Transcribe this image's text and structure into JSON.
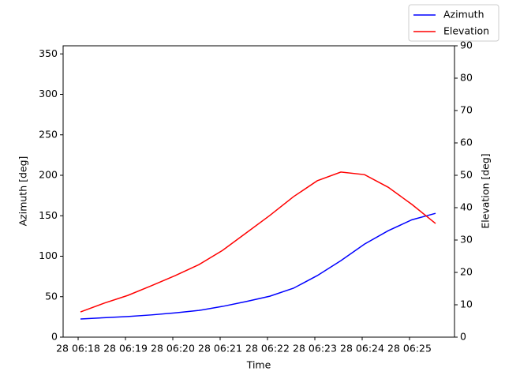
{
  "chart_data": {
    "type": "line",
    "xlabel": "Time",
    "ylabel": "Azimuth [deg]",
    "y2label": "Elevation [deg]",
    "x": [
      18.05,
      18.55,
      19.05,
      19.55,
      20.05,
      20.55,
      21.05,
      21.55,
      22.05,
      22.55,
      23.05,
      23.55,
      24.05,
      24.55,
      25.05,
      25.55
    ],
    "xlim": [
      17.683,
      25.95
    ],
    "xticks": [
      {
        "value": 18,
        "label": "28 06:18"
      },
      {
        "value": 19,
        "label": "28 06:19"
      },
      {
        "value": 20,
        "label": "28 06:20"
      },
      {
        "value": 21,
        "label": "28 06:21"
      },
      {
        "value": 22,
        "label": "28 06:22"
      },
      {
        "value": 23,
        "label": "28 06:23"
      },
      {
        "value": 24,
        "label": "28 06:24"
      },
      {
        "value": 25,
        "label": "28 06:25"
      }
    ],
    "ylim": [
      0,
      360
    ],
    "yticks": [
      0,
      50,
      100,
      150,
      200,
      250,
      300,
      350
    ],
    "y2lim": [
      0,
      90
    ],
    "y2ticks": [
      0,
      10,
      20,
      30,
      40,
      50,
      60,
      70,
      80,
      90
    ],
    "legend": "upper right",
    "series": [
      {
        "name": "Azimuth",
        "color": "#0000ff",
        "axis": "y",
        "values": [
          22.4,
          24,
          25.5,
          27.5,
          30,
          33,
          38,
          44,
          50.6,
          60.5,
          76,
          94.5,
          115,
          131.5,
          145,
          153
        ]
      },
      {
        "name": "Elevation",
        "color": "#ff0000",
        "axis": "y2",
        "values": [
          7.8,
          10.5,
          12.9,
          15.9,
          19,
          22.4,
          26.8,
          32.2,
          37.6,
          43.4,
          48.3,
          51,
          50.2,
          46.3,
          41,
          35.1
        ]
      }
    ]
  }
}
